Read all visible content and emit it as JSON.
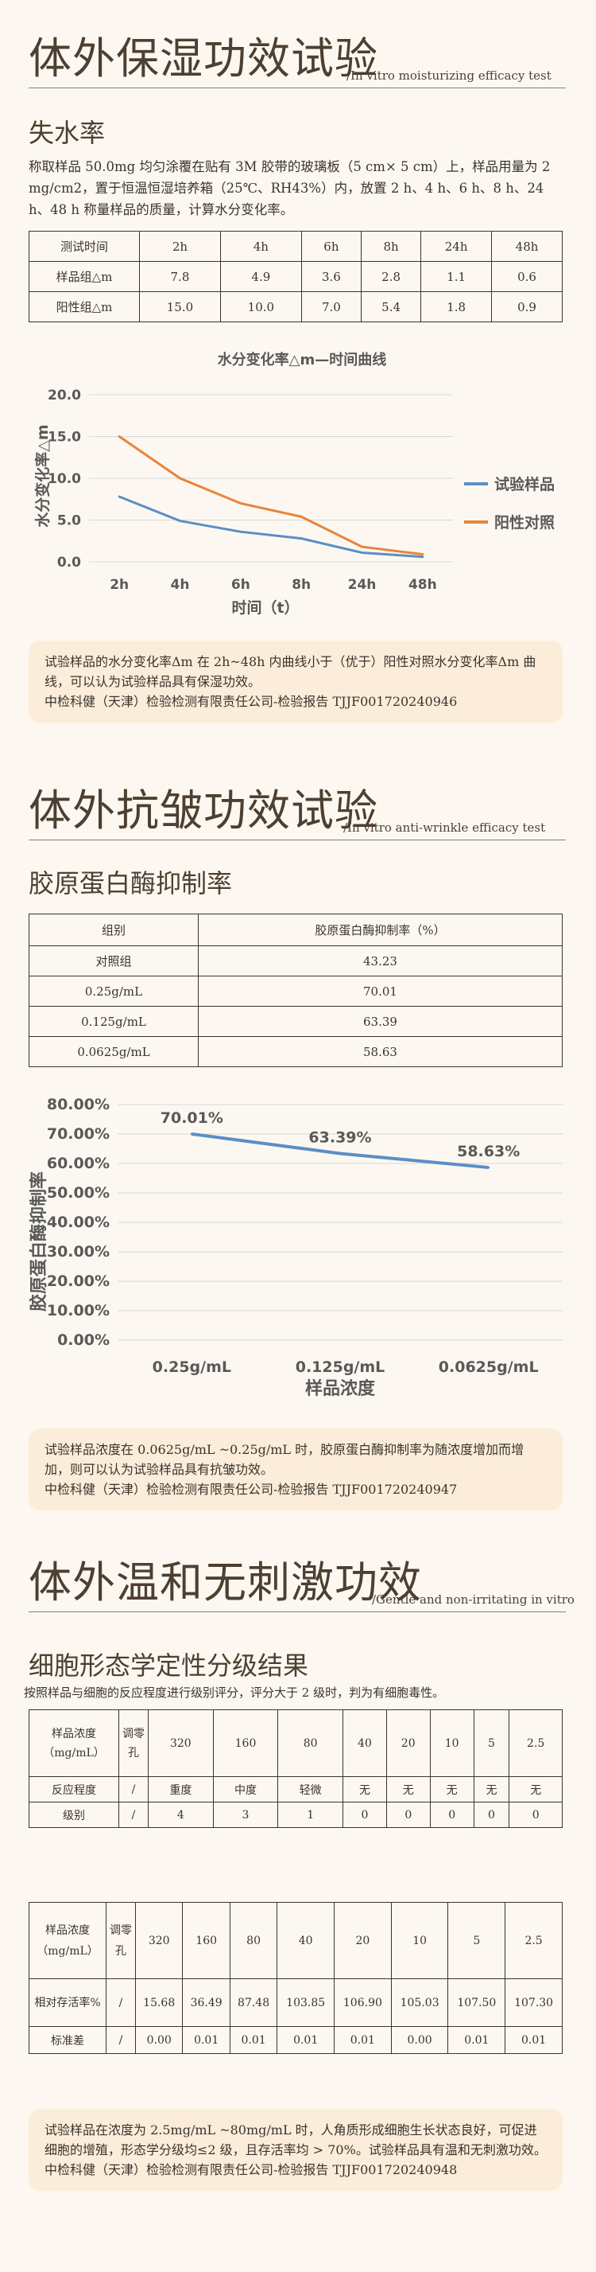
{
  "s1": {
    "title": "体外保湿功效试验",
    "subtitle": "/In vitro moisturizing efficacy test",
    "heading": "失水率",
    "desc": "称取样品 50.0mg 均匀涂覆在贴有 3M 胶带的玻璃板（5 cm× 5 cm）上，样品用量为 2 mg/cm2，置于恒温恒湿培养箱（25℃、RH43%）内，放置 2 h、4 h、6 h、8 h、24 h、48 h 称量样品的质量，计算水分变化率。",
    "table": {
      "header": [
        "测试时间",
        "2h",
        "4h",
        "6h",
        "8h",
        "24h",
        "48h"
      ],
      "rows": [
        [
          "样品组△m",
          "7.8",
          "4.9",
          "3.6",
          "2.8",
          "1.1",
          "0.6"
        ],
        [
          "阳性组△m",
          "15.0",
          "10.0",
          "7.0",
          "5.4",
          "1.8",
          "0.9"
        ]
      ]
    },
    "note": [
      "试验样品的水分变化率Δm 在 2h~48h 内曲线小于（优于）阳性对照水分变化率Δm 曲线，可以认为试验样品具有保湿功效。",
      "中检科健（天津）检验检测有限责任公司-检验报告 TJJF001720240946"
    ]
  },
  "s2": {
    "title": "体外抗皱功效试验",
    "subtitle": "/In vitro anti-wrinkle efficacy test",
    "heading": "胶原蛋白酶抑制率",
    "table": {
      "header": [
        "组别",
        "胶原蛋白酶抑制率（%）"
      ],
      "rows": [
        [
          "对照组",
          "43.23"
        ],
        [
          "0.25g/mL",
          "70.01"
        ],
        [
          "0.125g/mL",
          "63.39"
        ],
        [
          "0.0625g/mL",
          "58.63"
        ]
      ]
    },
    "note": [
      "试验样品浓度在 0.0625g/mL ~0.25g/mL 时，胶原蛋白酶抑制率为随浓度增加而增加，则可以认为试验样品具有抗皱功效。",
      "中检科健（天津）检验检测有限责任公司-检验报告 TJJF001720240947"
    ]
  },
  "s3": {
    "title": "体外温和无刺激功效",
    "subtitle": "/Gentle and non-irritating in vitro",
    "heading": "细胞形态学定性分级结果",
    "desc": "按照样品与细胞的反应程度进行级别评分，评分大于 2 级时，判为有细胞毒性。",
    "table1": {
      "header_label": "样品浓度（mg/mL）",
      "header_zero": "调零孔",
      "header": [
        "320",
        "160",
        "80",
        "40",
        "20",
        "10",
        "5",
        "2.5"
      ],
      "rows": [
        {
          "label": "反应程度",
          "zero": "/",
          "values": [
            "重度",
            "中度",
            "轻微",
            "无",
            "无",
            "无",
            "无",
            "无"
          ]
        },
        {
          "label": "级别",
          "zero": "/",
          "values": [
            "4",
            "3",
            "1",
            "0",
            "0",
            "0",
            "0",
            "0"
          ]
        }
      ]
    },
    "table2": {
      "header_label": "样品浓度（mg/mL）",
      "header_zero": "调零孔",
      "header": [
        "320",
        "160",
        "80",
        "40",
        "20",
        "10",
        "5",
        "2.5"
      ],
      "rows": [
        {
          "label": "相对存活率%",
          "zero": "/",
          "values": [
            "15.68",
            "36.49",
            "87.48",
            "103.85",
            "106.90",
            "105.03",
            "107.50",
            "107.30"
          ]
        },
        {
          "label": "标准差",
          "zero": "/",
          "values": [
            "0.00",
            "0.01",
            "0.01",
            "0.01",
            "0.01",
            "0.00",
            "0.01",
            "0.01"
          ]
        }
      ]
    },
    "note": [
      "试验样品在浓度为 2.5mg/mL ~80mg/mL 时，人角质形成细胞生长状态良好，可促进细胞的增殖，形态学分级均≤2 级，且存活率均 > 70%。试验样品具有温和无刺激功效。",
      "中检科健（天津）检验检测有限责任公司-检验报告 TJJF001720240948"
    ]
  },
  "chart_data": [
    {
      "type": "line",
      "title": "水分变化率△m—时间曲线",
      "xlabel": "时间（t）",
      "ylabel": "水分变化率△m",
      "categories": [
        "2h",
        "4h",
        "6h",
        "8h",
        "24h",
        "48h"
      ],
      "series": [
        {
          "name": "试验样品",
          "values": [
            7.8,
            4.9,
            3.6,
            2.8,
            1.1,
            0.6
          ],
          "color": "#5b8ec6"
        },
        {
          "name": "阳性对照",
          "values": [
            15.0,
            10.0,
            7.0,
            5.4,
            1.8,
            0.9
          ],
          "color": "#e8843a"
        }
      ],
      "ylim": [
        0,
        20
      ],
      "yticks": [
        "0.0",
        "5.0",
        "10.0",
        "15.0",
        "20.0"
      ],
      "grid": true,
      "legend": "right"
    },
    {
      "type": "line",
      "title": "",
      "xlabel": "样品浓度",
      "ylabel": "胶原蛋白酶抑制率",
      "categories": [
        "0.25g/mL",
        "0.125g/mL",
        "0.0625g/mL"
      ],
      "series": [
        {
          "values": [
            70.01,
            63.39,
            58.63
          ],
          "labels": [
            "70.01%",
            "63.39%",
            "58.63%"
          ],
          "color": "#5b8ec6"
        }
      ],
      "ylim": [
        0,
        80
      ],
      "yticks": [
        "0.00%",
        "10.00%",
        "20.00%",
        "30.00%",
        "40.00%",
        "50.00%",
        "60.00%",
        "70.00%",
        "80.00%"
      ],
      "grid": true
    }
  ]
}
